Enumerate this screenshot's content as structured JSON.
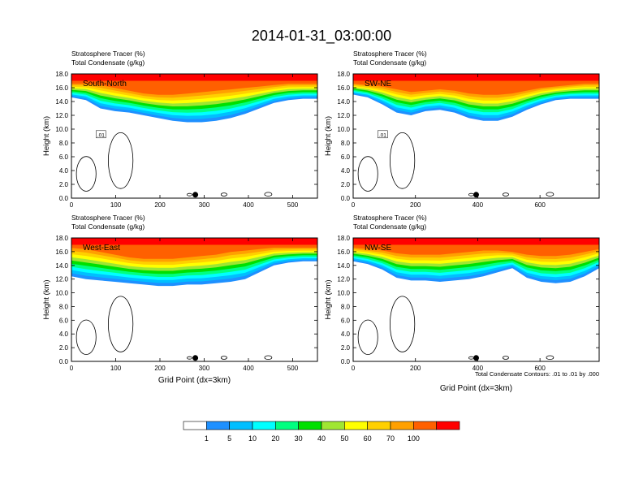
{
  "title": "2014-01-31_03:00:00",
  "contour_note": "Total Condensate Contours: .01 to .01 by .000",
  "colorbar": {
    "labels": [
      "1",
      "5",
      "10",
      "20",
      "30",
      "40",
      "50",
      "60",
      "70",
      "100"
    ],
    "colors": [
      "#ffffff",
      "#1e90ff",
      "#00bfff",
      "#00ffff",
      "#00ff80",
      "#00e000",
      "#a0e632",
      "#ffff00",
      "#ffd000",
      "#ffa000",
      "#ff6000",
      "#ff0000"
    ]
  },
  "chart_data": [
    {
      "type": "heatmap",
      "panel_label": "South-North",
      "header_line1": "Stratosphere Tracer   (%)",
      "header_line2": "Total Condensate   (g/kg)",
      "ylabel": "Height (km)",
      "xlabel": "",
      "xlim": [
        0,
        556
      ],
      "ylim": [
        0,
        18
      ],
      "xticks": [
        "0",
        "100",
        "200",
        "300",
        "400",
        "500"
      ],
      "xtick_values": [
        0,
        100,
        200,
        300,
        400,
        500
      ],
      "yticks": [
        "0.0",
        "2.0",
        "4.0",
        "6.0",
        "8.0",
        "10.0",
        "12.0",
        "14.0",
        "16.0",
        "18.0"
      ],
      "contour_label": ".01",
      "marker_x": 280,
      "tracer_base_km": [
        14.6,
        14.2,
        13.0,
        12.6,
        12.4,
        12.0,
        11.6,
        11.2,
        11.0,
        11.0,
        11.2,
        11.6,
        12.2,
        13.0,
        13.8,
        14.2,
        14.4,
        14.4
      ],
      "tracer_top_km": [
        16.6,
        16.6,
        16.4,
        16.0,
        15.6,
        15.2,
        15.0,
        15.0,
        15.2,
        15.4,
        15.6,
        15.8,
        16.0,
        16.2,
        16.4,
        16.6,
        16.6,
        16.6
      ]
    },
    {
      "type": "heatmap",
      "panel_label": "SW-NE",
      "header_line1": "Stratosphere Tracer   (%)",
      "header_line2": "Total Condensate   (g/kg)",
      "ylabel": "Height (km)",
      "xlabel": "",
      "xlim": [
        0,
        790
      ],
      "ylim": [
        0,
        18
      ],
      "xticks": [
        "0",
        "200",
        "400",
        "600"
      ],
      "xtick_values": [
        0,
        200,
        400,
        600
      ],
      "yticks": [
        "0.0",
        "2.0",
        "4.0",
        "6.0",
        "8.0",
        "10.0",
        "12.0",
        "14.0",
        "16.0",
        "18.0"
      ],
      "contour_label": ".01",
      "marker_x": 395,
      "tracer_base_km": [
        15.0,
        14.6,
        13.6,
        12.4,
        12.0,
        12.6,
        12.8,
        12.4,
        11.6,
        11.2,
        11.2,
        11.8,
        12.8,
        13.6,
        14.2,
        14.4,
        14.4,
        14.4
      ],
      "tracer_top_km": [
        16.6,
        16.4,
        16.2,
        15.8,
        15.4,
        15.6,
        15.8,
        15.6,
        15.2,
        15.0,
        15.0,
        15.2,
        15.6,
        16.0,
        16.2,
        16.4,
        16.6,
        16.6
      ]
    },
    {
      "type": "heatmap",
      "panel_label": "West-East",
      "header_line1": "Stratosphere Tracer   (%)",
      "header_line2": "Total Condensate   (g/kg)",
      "ylabel": "Height (km)",
      "xlabel": "Grid Point (dx=3km)",
      "xlim": [
        0,
        556
      ],
      "ylim": [
        0,
        18
      ],
      "xticks": [
        "0",
        "100",
        "200",
        "300",
        "400",
        "500"
      ],
      "xtick_values": [
        0,
        100,
        200,
        300,
        400,
        500
      ],
      "yticks": [
        "0.0",
        "2.0",
        "4.0",
        "6.0",
        "8.0",
        "10.0",
        "12.0",
        "14.0",
        "16.0",
        "18.0"
      ],
      "contour_label": "",
      "marker_x": 280,
      "tracer_base_km": [
        12.4,
        12.0,
        11.8,
        11.6,
        11.4,
        11.2,
        11.0,
        11.0,
        11.2,
        11.2,
        11.4,
        11.6,
        12.0,
        13.0,
        14.0,
        14.4,
        14.6,
        14.6
      ],
      "tracer_top_km": [
        16.6,
        16.4,
        16.0,
        15.6,
        15.2,
        15.0,
        15.0,
        15.0,
        15.2,
        15.4,
        15.6,
        16.0,
        16.2,
        16.4,
        16.6,
        16.6,
        16.6,
        16.6
      ]
    },
    {
      "type": "heatmap",
      "panel_label": "NW-SE",
      "header_line1": "Stratosphere Tracer   (%)",
      "header_line2": "Total Condensate   (g/kg)",
      "ylabel": "Height (km)",
      "xlabel": "Grid Point (dx=3km)",
      "xlim": [
        0,
        790
      ],
      "ylim": [
        0,
        18
      ],
      "xticks": [
        "0",
        "200",
        "400",
        "600"
      ],
      "xtick_values": [
        0,
        200,
        400,
        600
      ],
      "yticks": [
        "0.0",
        "2.0",
        "4.0",
        "6.0",
        "8.0",
        "10.0",
        "12.0",
        "14.0",
        "16.0",
        "18.0"
      ],
      "contour_label": "",
      "marker_x": 395,
      "tracer_base_km": [
        14.6,
        14.2,
        13.4,
        12.2,
        11.8,
        11.8,
        11.6,
        11.8,
        12.0,
        12.4,
        13.0,
        13.6,
        12.2,
        11.6,
        11.4,
        11.6,
        12.4,
        13.6
      ],
      "tracer_top_km": [
        16.6,
        16.4,
        16.2,
        15.8,
        15.6,
        15.6,
        15.6,
        15.8,
        16.0,
        16.2,
        16.2,
        16.0,
        15.6,
        15.4,
        15.4,
        15.6,
        16.0,
        16.4
      ]
    }
  ]
}
